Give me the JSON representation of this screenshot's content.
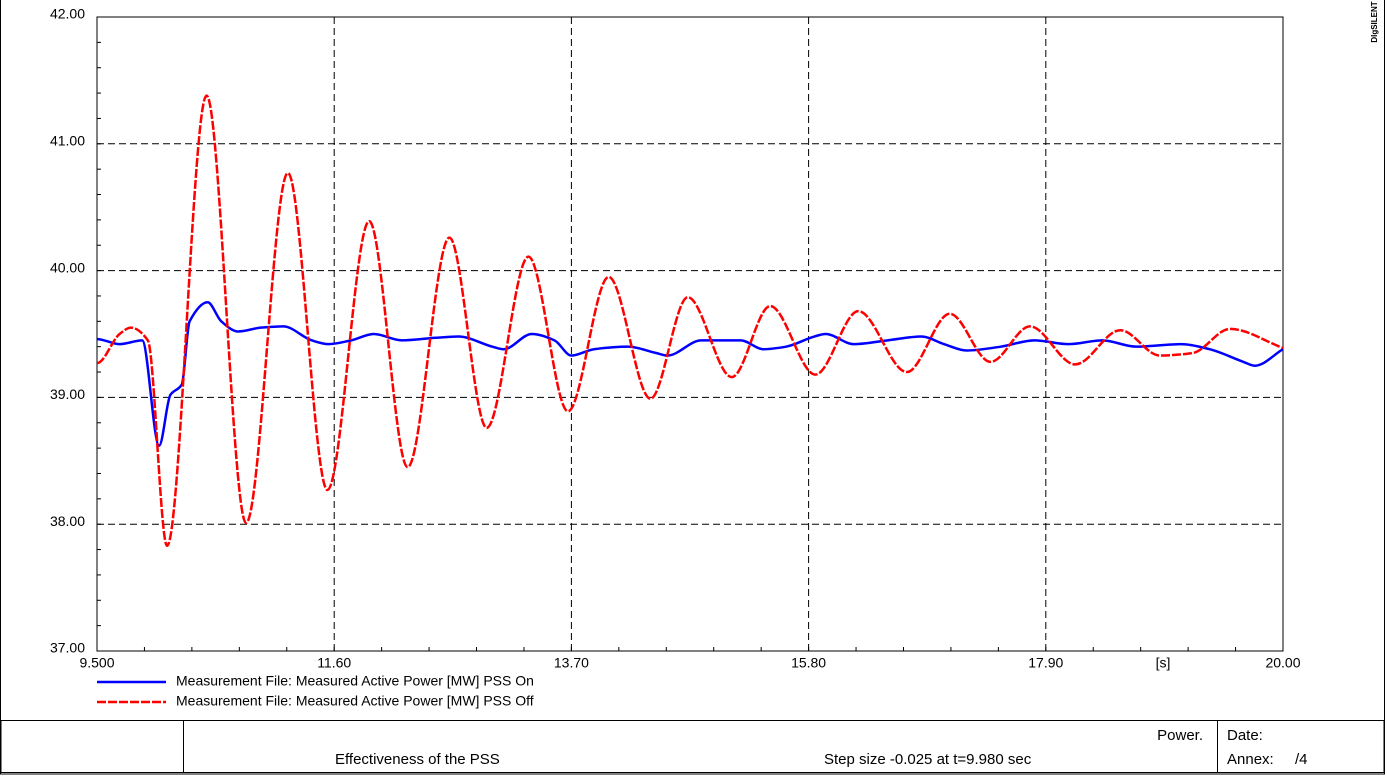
{
  "chart_data": {
    "type": "line",
    "x_label": "[s]",
    "xlim": [
      9.5,
      20.0
    ],
    "xticks": [
      {
        "value": 9.5,
        "label": "9.500"
      },
      {
        "value": 11.6,
        "label": "11.60"
      },
      {
        "value": 13.7,
        "label": "13.70"
      },
      {
        "value": 15.8,
        "label": "15.80"
      },
      {
        "value": 17.9,
        "label": "17.90"
      },
      {
        "value": 20.0,
        "label": "20.00"
      }
    ],
    "ylim": [
      37.0,
      42.0
    ],
    "yticks": [
      {
        "value": 37,
        "label": "37.00"
      },
      {
        "value": 38,
        "label": "38.00"
      },
      {
        "value": 39,
        "label": "39.00"
      },
      {
        "value": 40,
        "label": "40.00"
      },
      {
        "value": 41,
        "label": "41.00"
      },
      {
        "value": 42,
        "label": "42.00"
      }
    ],
    "grid": true,
    "series": [
      {
        "name": "Measurement File: Measured Active Power [MW] PSS On",
        "color": "#0000ff",
        "dash": false,
        "x": [
          9.5,
          9.7,
          9.9,
          10.05,
          10.15,
          10.25,
          10.32,
          10.48,
          10.6,
          10.75,
          10.95,
          11.15,
          11.4,
          11.55,
          11.75,
          11.95,
          12.2,
          12.5,
          12.7,
          13.0,
          13.1,
          13.35,
          13.55,
          13.7,
          13.9,
          14.2,
          14.45,
          14.55,
          14.85,
          15.2,
          15.4,
          15.6,
          15.85,
          15.95,
          16.2,
          16.5,
          16.8,
          17.0,
          17.2,
          17.5,
          17.8,
          18.1,
          18.4,
          18.7,
          19.1,
          19.35,
          19.65,
          19.75,
          20.0
        ],
        "values": [
          39.46,
          39.42,
          39.45,
          38.62,
          39.02,
          39.1,
          39.6,
          39.75,
          39.6,
          39.52,
          39.55,
          39.56,
          39.45,
          39.42,
          39.45,
          39.5,
          39.45,
          39.47,
          39.48,
          39.4,
          39.38,
          39.5,
          39.45,
          39.33,
          39.38,
          39.4,
          39.35,
          39.33,
          39.45,
          39.45,
          39.38,
          39.4,
          39.48,
          39.5,
          39.42,
          39.45,
          39.48,
          39.42,
          39.37,
          39.4,
          39.45,
          39.42,
          39.45,
          39.4,
          39.42,
          39.38,
          39.28,
          39.25,
          39.38
        ]
      },
      {
        "name": "Measurement File: Measured Active Power [MW] PSS Off",
        "color": "#ff0000",
        "dash": true,
        "x": [
          9.5,
          9.7,
          9.8,
          9.95,
          10.12,
          10.47,
          10.82,
          11.19,
          11.54,
          11.91,
          12.25,
          12.62,
          12.95,
          13.32,
          13.67,
          14.03,
          14.4,
          14.73,
          15.12,
          15.46,
          15.86,
          16.24,
          16.67,
          17.05,
          17.41,
          17.76,
          18.16,
          18.56,
          18.91,
          19.2,
          19.53,
          20.0
        ],
        "values": [
          39.27,
          39.5,
          39.55,
          39.45,
          37.83,
          41.38,
          38.01,
          40.77,
          38.27,
          40.39,
          38.45,
          40.26,
          38.76,
          40.11,
          38.89,
          39.95,
          38.99,
          39.79,
          39.16,
          39.72,
          39.18,
          39.68,
          39.2,
          39.66,
          39.28,
          39.56,
          39.26,
          39.53,
          39.33,
          39.35,
          39.54,
          39.39
        ]
      }
    ]
  },
  "logo": "DIgSILENT",
  "footer": {
    "title": "Effectiveness of the PSS",
    "subtitle": "Power.",
    "note": "Step size -0.025 at t=9.980 sec",
    "date": "Date:",
    "annex": "Annex:",
    "page": "/4"
  }
}
